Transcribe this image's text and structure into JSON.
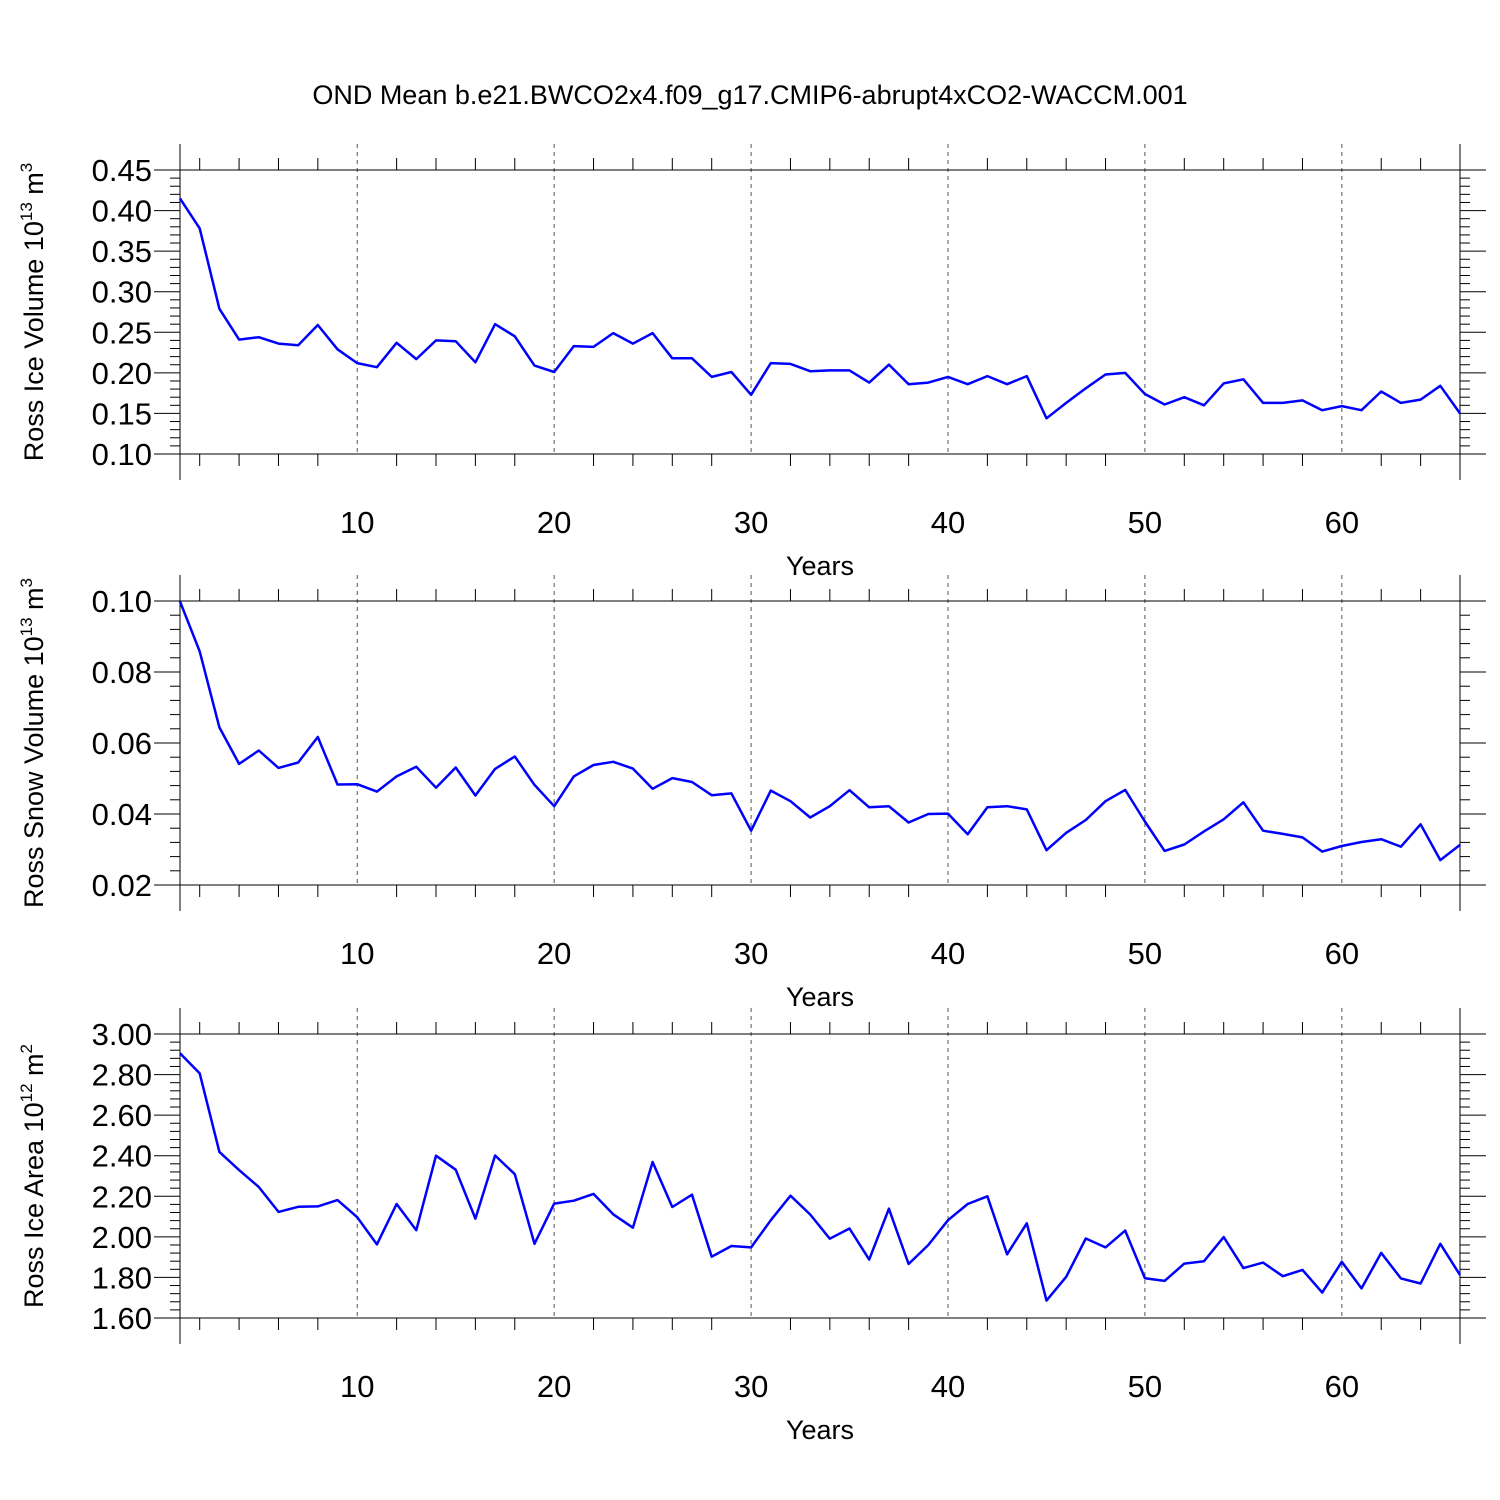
{
  "figure_title": "OND Mean b.e21.BWCO2x4.f09_g17.CMIP6-abrupt4xCO2-WACCM.001",
  "line_color": "#0000ff",
  "chart_data": [
    {
      "type": "line",
      "ylabel": "Ross Ice Volume 10",
      "ylabel_exp": "13",
      "ylabel_unit": "m",
      "ylabel_unit_exp": "3",
      "xlabel": "Years",
      "xlim": [
        1,
        66
      ],
      "ylim": [
        0.1,
        0.45
      ],
      "yticks": [
        "0.10",
        "0.15",
        "0.20",
        "0.25",
        "0.30",
        "0.35",
        "0.40",
        "0.45"
      ],
      "xticks": [
        "10",
        "20",
        "30",
        "40",
        "50",
        "60"
      ],
      "grid": "vertical dashed at x ticks",
      "series": [
        {
          "x": [
            1,
            2,
            3,
            4,
            5,
            6,
            7,
            8,
            9,
            10,
            11,
            12,
            13,
            14,
            15,
            16,
            17,
            18,
            19,
            20,
            21,
            22,
            23,
            24,
            25,
            26,
            27,
            28,
            29,
            30,
            31,
            32,
            33,
            34,
            35,
            36,
            37,
            38,
            39,
            40,
            41,
            42,
            43,
            44,
            45,
            46,
            47,
            48,
            49,
            50,
            51,
            52,
            53,
            54,
            55,
            56,
            57,
            58,
            59,
            60,
            61,
            62,
            63,
            64,
            65,
            66
          ],
          "values": [
            0.415,
            0.378,
            0.279,
            0.241,
            0.244,
            0.236,
            0.234,
            0.259,
            0.229,
            0.212,
            0.207,
            0.237,
            0.217,
            0.24,
            0.239,
            0.213,
            0.26,
            0.245,
            0.209,
            0.201,
            0.233,
            0.232,
            0.249,
            0.236,
            0.249,
            0.218,
            0.218,
            0.195,
            0.201,
            0.173,
            0.212,
            0.211,
            0.202,
            0.203,
            0.203,
            0.188,
            0.21,
            0.186,
            0.188,
            0.195,
            0.186,
            0.196,
            0.186,
            0.196,
            0.144,
            0.163,
            0.181,
            0.198,
            0.2,
            0.174,
            0.161,
            0.17,
            0.16,
            0.187,
            0.192,
            0.163,
            0.163,
            0.166,
            0.154,
            0.159,
            0.154,
            0.177,
            0.163,
            0.167,
            0.184,
            0.15
          ]
        }
      ]
    },
    {
      "type": "line",
      "ylabel": "Ross Snow Volume 10",
      "ylabel_exp": "13",
      "ylabel_unit": "m",
      "ylabel_unit_exp": "3",
      "xlabel": "Years",
      "xlim": [
        1,
        66
      ],
      "ylim": [
        0.02,
        0.1
      ],
      "yticks": [
        "0.02",
        "0.04",
        "0.06",
        "0.08",
        "0.10"
      ],
      "xticks": [
        "10",
        "20",
        "30",
        "40",
        "50",
        "60"
      ],
      "grid": "vertical dashed at x ticks",
      "series": [
        {
          "x": [
            1,
            2,
            3,
            4,
            5,
            6,
            7,
            8,
            9,
            10,
            11,
            12,
            13,
            14,
            15,
            16,
            17,
            18,
            19,
            20,
            21,
            22,
            23,
            24,
            25,
            26,
            27,
            28,
            29,
            30,
            31,
            32,
            33,
            34,
            35,
            36,
            37,
            38,
            39,
            40,
            41,
            42,
            43,
            44,
            45,
            46,
            47,
            48,
            49,
            50,
            51,
            52,
            53,
            54,
            55,
            56,
            57,
            58,
            59,
            60,
            61,
            62,
            63,
            64,
            65,
            66
          ],
          "values": [
            0.0999,
            0.0858,
            0.0644,
            0.0541,
            0.0579,
            0.053,
            0.0545,
            0.0617,
            0.0483,
            0.0484,
            0.0463,
            0.0506,
            0.0533,
            0.0474,
            0.0531,
            0.0452,
            0.0527,
            0.0562,
            0.0482,
            0.0422,
            0.0506,
            0.0538,
            0.0547,
            0.0528,
            0.0471,
            0.0501,
            0.049,
            0.0453,
            0.0458,
            0.0353,
            0.0466,
            0.0436,
            0.039,
            0.0422,
            0.0467,
            0.0419,
            0.0422,
            0.0376,
            0.04,
            0.0401,
            0.0343,
            0.0419,
            0.0422,
            0.0413,
            0.0298,
            0.0347,
            0.0383,
            0.0436,
            0.0468,
            0.0379,
            0.0296,
            0.0314,
            0.0351,
            0.0385,
            0.0433,
            0.0353,
            0.0344,
            0.0334,
            0.0294,
            0.031,
            0.0321,
            0.0329,
            0.0308,
            0.0371,
            0.027,
            0.0313
          ]
        }
      ]
    },
    {
      "type": "line",
      "ylabel": "Ross Ice Area 10",
      "ylabel_exp": "12",
      "ylabel_unit": "m",
      "ylabel_unit_exp": "2",
      "xlabel": "Years",
      "xlim": [
        1,
        66
      ],
      "ylim": [
        1.6,
        3.0
      ],
      "yticks": [
        "1.60",
        "1.80",
        "2.00",
        "2.20",
        "2.40",
        "2.60",
        "2.80",
        "3.00"
      ],
      "xticks": [
        "10",
        "20",
        "30",
        "40",
        "50",
        "60"
      ],
      "grid": "vertical dashed at x ticks",
      "series": [
        {
          "x": [
            1,
            2,
            3,
            4,
            5,
            6,
            7,
            8,
            9,
            10,
            11,
            12,
            13,
            14,
            15,
            16,
            17,
            18,
            19,
            20,
            21,
            22,
            23,
            24,
            25,
            26,
            27,
            28,
            29,
            30,
            31,
            32,
            33,
            34,
            35,
            36,
            37,
            38,
            39,
            40,
            41,
            42,
            43,
            44,
            45,
            46,
            47,
            48,
            49,
            50,
            51,
            52,
            53,
            54,
            55,
            56,
            57,
            58,
            59,
            60,
            61,
            62,
            63,
            64,
            65,
            66
          ],
          "values": [
            2.905,
            2.806,
            2.419,
            2.329,
            2.246,
            2.123,
            2.148,
            2.15,
            2.181,
            2.097,
            1.963,
            2.162,
            2.033,
            2.4,
            2.331,
            2.09,
            2.401,
            2.309,
            1.966,
            2.164,
            2.178,
            2.212,
            2.111,
            2.045,
            2.369,
            2.147,
            2.208,
            1.902,
            1.955,
            1.948,
            2.082,
            2.203,
            2.11,
            1.991,
            2.041,
            1.888,
            2.139,
            1.866,
            1.96,
            2.082,
            2.162,
            2.2,
            1.914,
            2.067,
            1.686,
            1.803,
            1.992,
            1.948,
            2.031,
            1.796,
            1.783,
            1.868,
            1.88,
            1.999,
            1.846,
            1.873,
            1.806,
            1.837,
            1.725,
            1.877,
            1.746,
            1.921,
            1.795,
            1.77,
            1.966,
            1.812
          ]
        }
      ]
    }
  ]
}
